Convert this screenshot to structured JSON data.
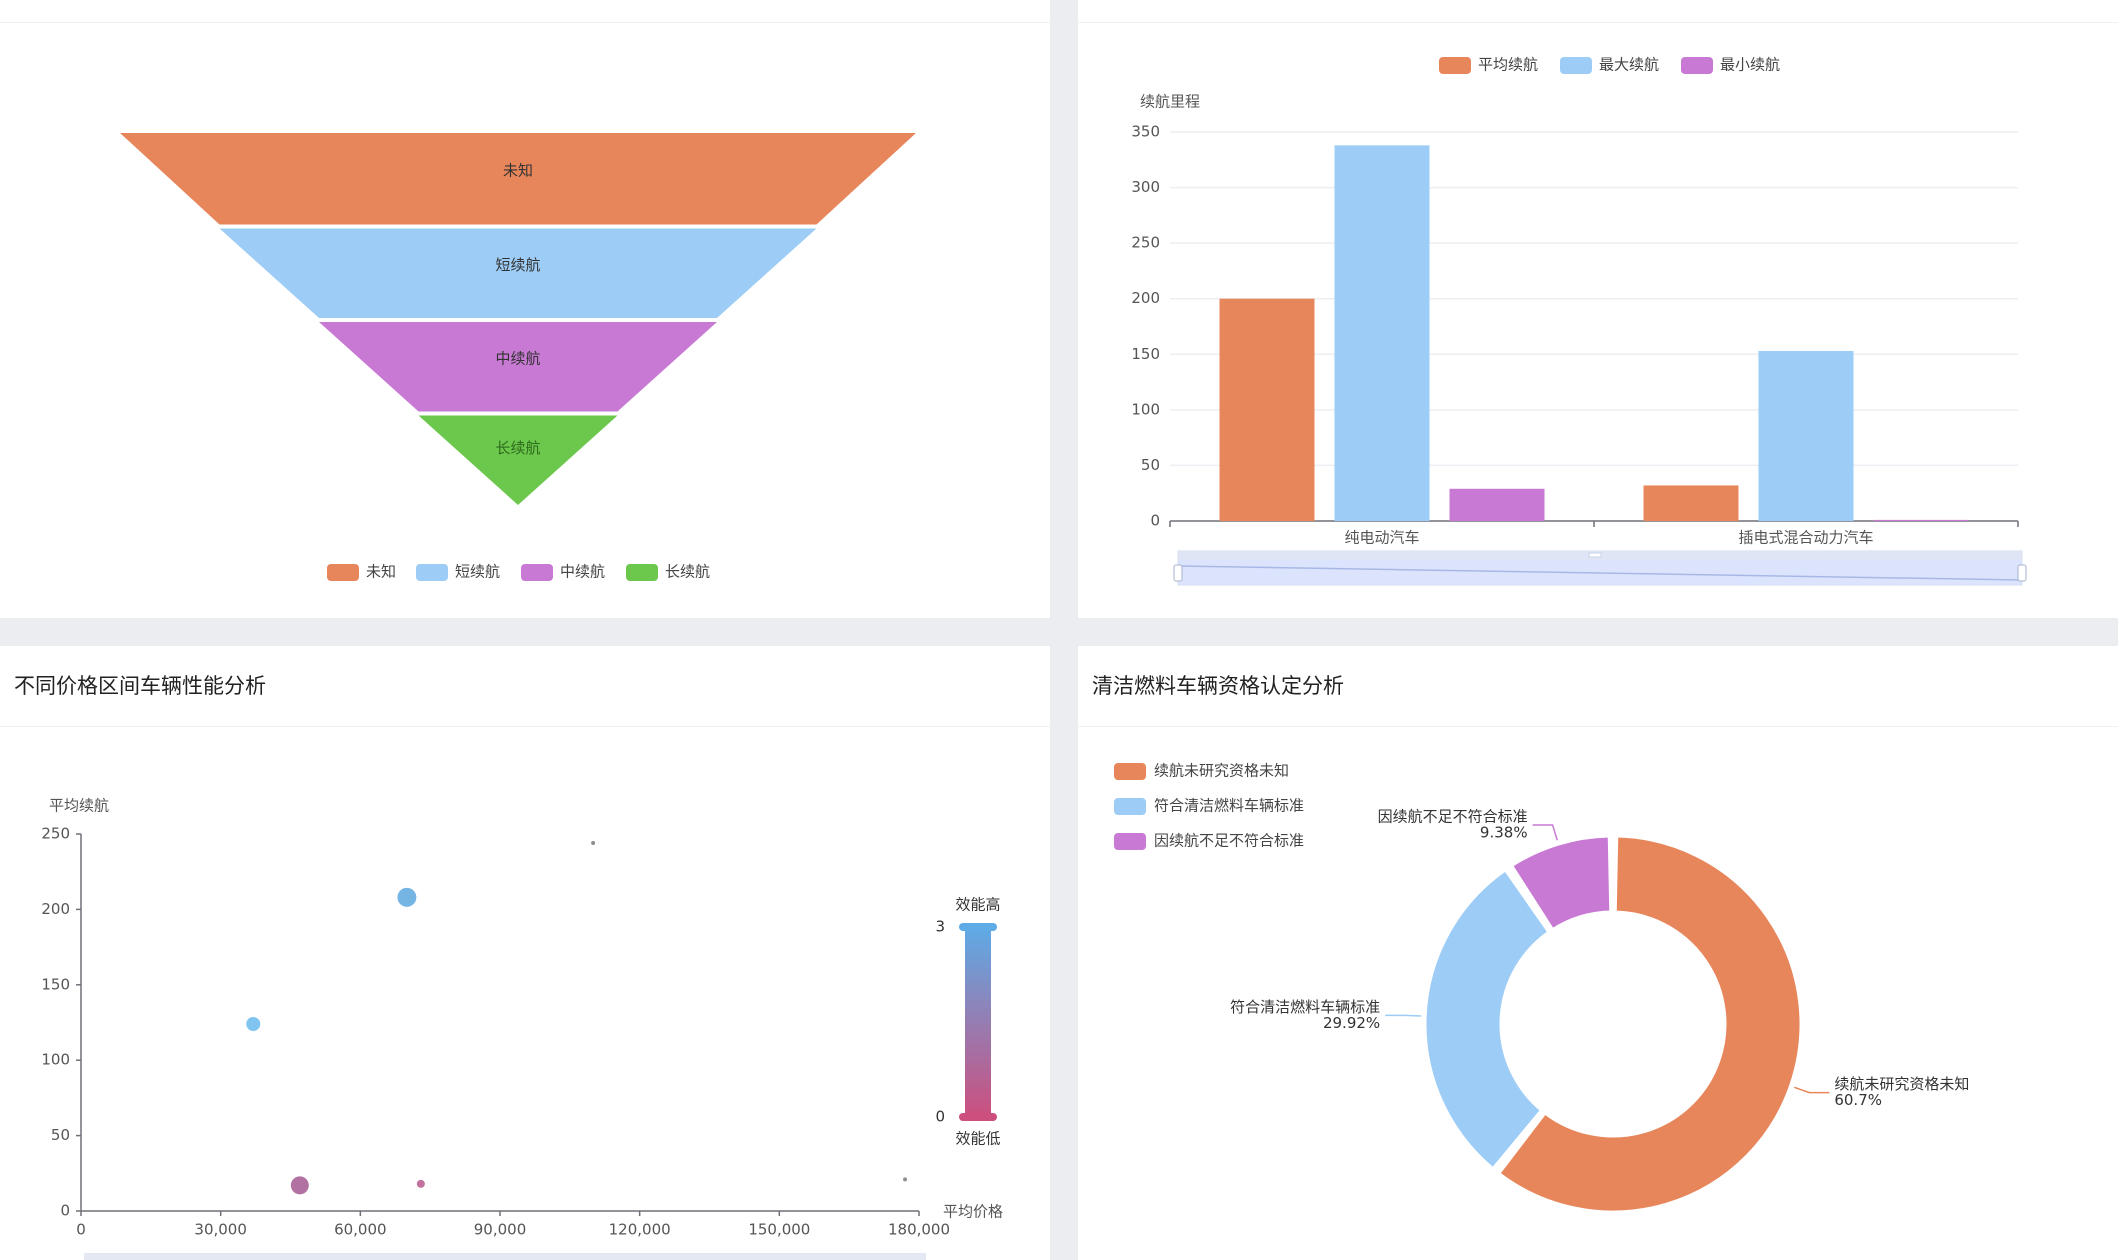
{
  "panels": {
    "funnel": {
      "title": "",
      "chart_data": {
        "type": "funnel",
        "categories": [
          "未知",
          "短续航",
          "中续航",
          "长续航"
        ],
        "values": [
          4,
          3,
          2,
          1
        ],
        "colors": [
          "#e8865b",
          "#9dcdf6",
          "#c879d4",
          "#6cc84c"
        ],
        "legend": [
          "未知",
          "短续航",
          "中续航",
          "长续航"
        ],
        "legend_position": "bottom-center"
      }
    },
    "range_bar": {
      "title": "",
      "chart_data": {
        "type": "bar",
        "categories": [
          "纯电动汽车",
          "插电式混合动力汽车"
        ],
        "series": [
          {
            "name": "平均续航",
            "values": [
              200,
              32
            ],
            "color": "#e8865b"
          },
          {
            "name": "最大续航",
            "values": [
              338,
              153
            ],
            "color": "#9dcdf6"
          },
          {
            "name": "最小续航",
            "values": [
              29,
              1
            ],
            "color": "#c879d4"
          }
        ],
        "ylabel": "续航里程",
        "ylim": [
          0,
          350
        ],
        "yticks": [
          "0",
          "50",
          "100",
          "150",
          "200",
          "250",
          "300",
          "350"
        ],
        "legend_position": "top-center",
        "grid": true,
        "datazoom": true
      }
    },
    "scatter": {
      "title": "不同价格区间车辆性能分析",
      "chart_data": {
        "type": "scatter",
        "xlabel": "平均价格",
        "ylabel": "平均续航",
        "xlim": [
          0,
          180000
        ],
        "ylim": [
          0,
          250
        ],
        "xticks": [
          "0",
          "30,000",
          "60,000",
          "90,000",
          "120,000",
          "150,000",
          "180,000"
        ],
        "yticks": [
          "0",
          "50",
          "100",
          "150",
          "200",
          "250"
        ],
        "points": [
          {
            "x": 70000,
            "y": 208,
            "size": 18,
            "color": "#6eb1e3"
          },
          {
            "x": 37000,
            "y": 124,
            "size": 13,
            "color": "#79c2ee"
          },
          {
            "x": 47000,
            "y": 17,
            "size": 17,
            "color": "#ad6a9c"
          },
          {
            "x": 73000,
            "y": 18,
            "size": 7,
            "color": "#c06a98"
          },
          {
            "x": 110000,
            "y": 244,
            "size": 3,
            "color": "#888888"
          },
          {
            "x": 177000,
            "y": 21,
            "size": 3,
            "color": "#888888"
          }
        ],
        "visual_map": {
          "max": 3,
          "min": 0,
          "high_label": "效能高",
          "low_label": "效能低",
          "max_label": "3",
          "min_label": "0",
          "color_high": "#5eabe6",
          "color_low": "#cc4f7e"
        },
        "grid": false
      }
    },
    "donut": {
      "title": "清洁燃料车辆资格认定分析",
      "chart_data": {
        "type": "pie",
        "donut": true,
        "slices": [
          {
            "name": "续航未研究资格未知",
            "value": 60.7,
            "label": "60.7%",
            "color": "#e8865b"
          },
          {
            "name": "符合清洁燃料车辆标准",
            "value": 29.92,
            "label": "29.92%",
            "color": "#9dcdf6"
          },
          {
            "name": "因续航不足不符合标准",
            "value": 9.38,
            "label": "9.38%",
            "color": "#c879d4"
          }
        ],
        "legend_position": "top-left"
      }
    }
  }
}
